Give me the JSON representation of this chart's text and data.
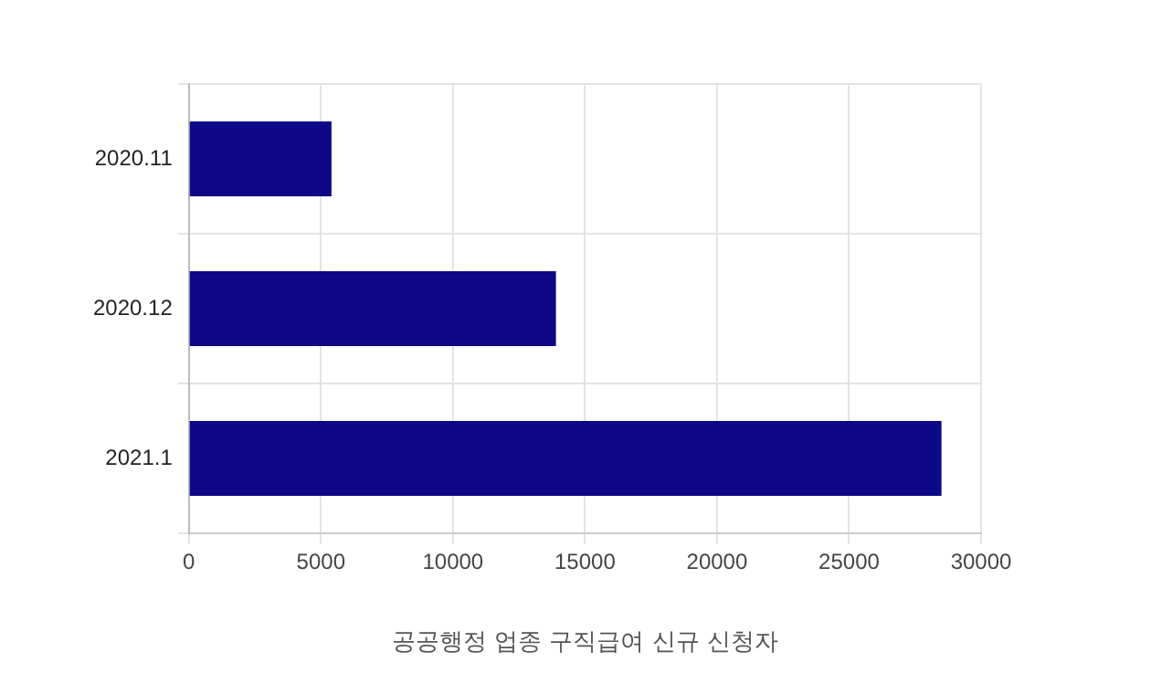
{
  "chart_data": {
    "type": "bar",
    "orientation": "horizontal",
    "xlabel": "공공행정 업종 구직급여 신규 신청자",
    "categories": [
      "2020.11",
      "2020.12",
      "2021.1"
    ],
    "values": [
      5400,
      13900,
      28500
    ],
    "color": "#0d0887",
    "xlim": [
      0,
      30000
    ],
    "xticks": [
      0,
      5000,
      10000,
      15000,
      20000,
      25000,
      30000
    ],
    "grid": true
  }
}
